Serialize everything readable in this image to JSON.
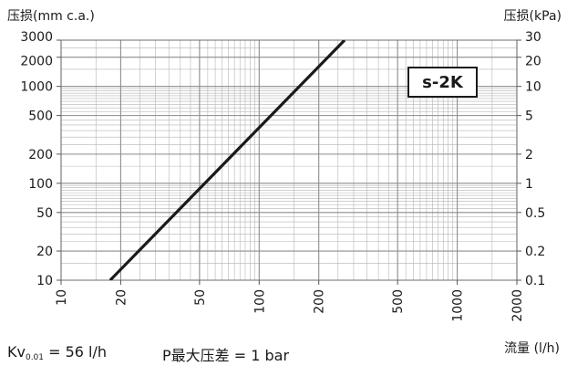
{
  "chart_data": {
    "type": "line",
    "x_scale": "log",
    "y_scale": "log",
    "xlabel": "流量 (l/h)",
    "ylabel_left": "压损(mm c.a.)",
    "ylabel_right": "压损(kPa)",
    "xlim": [
      10,
      2000
    ],
    "ylim": [
      10,
      3000
    ],
    "x_ticks": [
      10,
      20,
      50,
      100,
      200,
      500,
      1000,
      2000
    ],
    "x_tick_labels": [
      "10",
      "20",
      "50",
      "100",
      "200",
      "500",
      "1000",
      "2000"
    ],
    "y_ticks": [
      10,
      20,
      50,
      100,
      200,
      500,
      1000,
      2000,
      3000
    ],
    "y_tick_labels_left": [
      "10",
      "20",
      "50",
      "100",
      "200",
      "500",
      "1000",
      "2000",
      "3000"
    ],
    "y_tick_labels_right": [
      "0.1",
      "0.2",
      "0.5",
      "1",
      "2",
      "5",
      "10",
      "20",
      "30"
    ],
    "grid": true,
    "series": [
      {
        "name": "s-2K",
        "x": [
          17.7,
          270
        ],
        "y": [
          10,
          3000
        ]
      }
    ],
    "annotations": {
      "kv_prefix": "Kv",
      "kv_sub": "0.01",
      "kv_value": " = 56 l/h",
      "max_dp": "P最大压差 = 1 bar"
    },
    "colors": {
      "line": "#1a1a1a",
      "grid": "#b5b5b5"
    }
  }
}
